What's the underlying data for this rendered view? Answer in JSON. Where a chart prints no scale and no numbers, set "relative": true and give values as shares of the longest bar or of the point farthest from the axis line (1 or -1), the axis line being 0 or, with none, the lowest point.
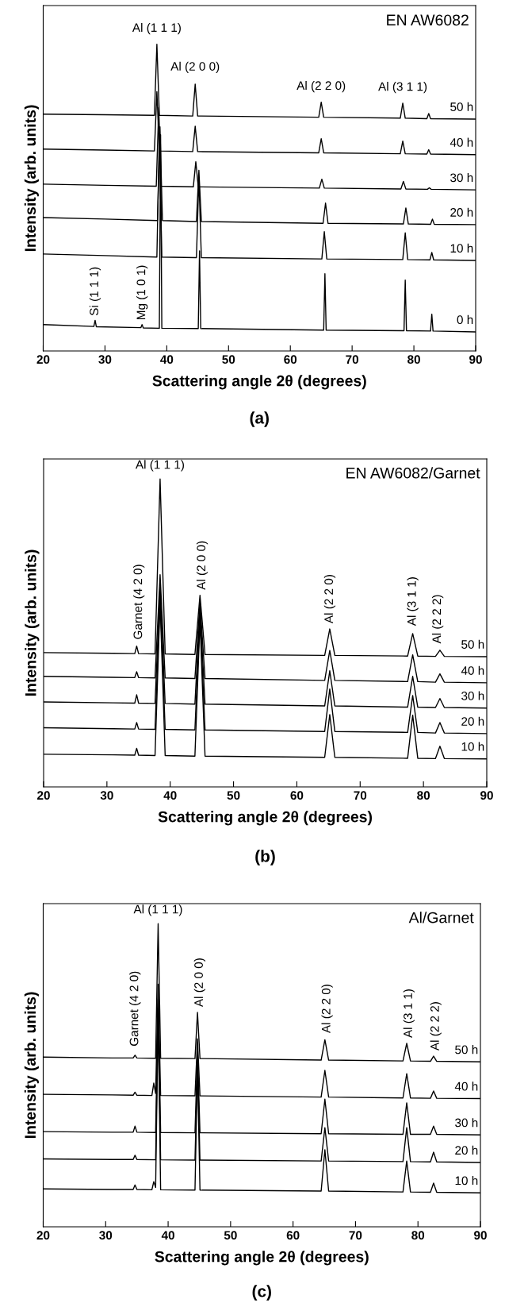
{
  "chart_data": [
    {
      "type": "line",
      "title": "(a)",
      "xlabel": "Scattering angle 2θ (degrees)",
      "ylabel": "Intensity (arb. units)",
      "relative": true,
      "xlim": [
        20,
        90
      ],
      "xticks": [
        20,
        30,
        40,
        50,
        60,
        70,
        80,
        90
      ],
      "tick_labels": "x",
      "legend": false,
      "grid": false,
      "annotations": [
        "EN AW6082",
        {
          "text": "Al (1 1 1)",
          "x": 38.4,
          "y": 1.0
        },
        {
          "text": "Al (2 0 0)",
          "x": 44.6,
          "y": 0.87
        },
        {
          "text": "Al (2 2 0)",
          "x": 65.0,
          "y": 0.811
        },
        {
          "text": "Al (3 1 1)",
          "x": 78.2,
          "y": 0.808
        },
        {
          "text": "Si (1 1 1)",
          "x": 28.4,
          "y": 0.1
        },
        {
          "text": "Mg (1 0 1)",
          "x": 36.0,
          "y": 0.086
        }
      ],
      "series": [
        {
          "name": "50 h",
          "color": "#000000",
          "x": [
            20,
            30,
            38.0,
            38.4,
            38.8,
            44.2,
            44.6,
            45.0,
            64.6,
            65.0,
            65.4,
            77.8,
            78.2,
            78.6,
            82.1,
            82.4,
            82.7,
            90
          ],
          "values": [
            0.772,
            0.77,
            0.768,
            1.0,
            0.768,
            0.766,
            0.87,
            0.766,
            0.762,
            0.811,
            0.762,
            0.759,
            0.808,
            0.759,
            0.757,
            0.774,
            0.757,
            0.756
          ]
        },
        {
          "name": "40 h",
          "color": "#000000",
          "x": [
            20,
            30,
            38.0,
            38.4,
            38.8,
            44.2,
            44.6,
            45.0,
            64.6,
            65.0,
            65.4,
            77.8,
            78.2,
            78.6,
            82.1,
            82.4,
            82.7,
            90
          ],
          "values": [
            0.658,
            0.655,
            0.652,
            0.845,
            0.652,
            0.65,
            0.733,
            0.65,
            0.646,
            0.692,
            0.646,
            0.643,
            0.684,
            0.643,
            0.642,
            0.656,
            0.642,
            0.64
          ]
        },
        {
          "name": "30 h",
          "color": "#000000",
          "x": [
            20,
            30,
            38.3,
            38.7,
            39.1,
            44.3,
            44.7,
            45.1,
            64.7,
            65.1,
            65.5,
            77.9,
            78.3,
            78.7,
            82.2,
            82.5,
            82.8,
            90
          ],
          "values": [
            0.544,
            0.54,
            0.537,
            0.793,
            0.537,
            0.535,
            0.617,
            0.535,
            0.531,
            0.56,
            0.531,
            0.528,
            0.553,
            0.528,
            0.527,
            0.532,
            0.527,
            0.525
          ]
        },
        {
          "name": "20 h",
          "color": "#000000",
          "x": [
            20,
            30,
            38.5,
            38.9,
            39.3,
            44.8,
            45.2,
            45.6,
            65.3,
            65.7,
            66.1,
            78.3,
            78.7,
            79.1,
            82.7,
            83.0,
            83.3,
            90
          ],
          "values": [
            0.435,
            0.43,
            0.425,
            0.731,
            0.425,
            0.422,
            0.589,
            0.422,
            0.416,
            0.482,
            0.416,
            0.414,
            0.466,
            0.414,
            0.413,
            0.43,
            0.413,
            0.412
          ]
        },
        {
          "name": "10 h",
          "color": "#000000",
          "x": [
            20,
            30,
            38.4,
            38.8,
            39.2,
            44.8,
            45.2,
            45.6,
            65.1,
            65.5,
            65.9,
            78.2,
            78.6,
            79.0,
            82.6,
            82.9,
            83.2,
            90
          ],
          "values": [
            0.316,
            0.311,
            0.306,
            0.71,
            0.306,
            0.304,
            0.565,
            0.304,
            0.3,
            0.389,
            0.3,
            0.298,
            0.385,
            0.298,
            0.297,
            0.321,
            0.297,
            0.295
          ]
        },
        {
          "name": "0 h",
          "color": "#000000",
          "x": [
            20,
            28.2,
            28.4,
            28.6,
            35.8,
            36.0,
            36.2,
            38.8,
            39.0,
            39.2,
            45.1,
            45.3,
            45.5,
            65.4,
            65.6,
            65.8,
            78.4,
            78.6,
            78.8,
            82.7,
            82.9,
            83.1,
            90
          ],
          "values": [
            0.086,
            0.08,
            0.1,
            0.079,
            0.076,
            0.086,
            0.075,
            0.074,
            0.705,
            0.074,
            0.073,
            0.326,
            0.073,
            0.068,
            0.252,
            0.068,
            0.066,
            0.231,
            0.066,
            0.065,
            0.12,
            0.065,
            0.062
          ]
        }
      ]
    },
    {
      "type": "line",
      "title": "(b)",
      "xlabel": "Scattering angle 2θ (degrees)",
      "ylabel": "Intensity (arb. units)",
      "relative": true,
      "xlim": [
        20,
        90
      ],
      "xticks": [
        20,
        30,
        40,
        50,
        60,
        70,
        80,
        90
      ],
      "tick_labels": "x",
      "legend": false,
      "grid": false,
      "annotations": [
        "EN AW6082/Garnet",
        {
          "text": "Al (1 1 1)",
          "x": 38.4,
          "y": 1.0
        },
        {
          "text": "Garnet (4 2 0)",
          "x": 34.7,
          "y": 0.457
        },
        {
          "text": "Al (2 0 0)",
          "x": 44.7,
          "y": 0.622
        },
        {
          "text": "Al (2 2 0)",
          "x": 65.2,
          "y": 0.513
        },
        {
          "text": "Al (3 1 1)",
          "x": 78.3,
          "y": 0.498
        },
        {
          "text": "Al (2 2 2)",
          "x": 82.6,
          "y": 0.444
        }
      ],
      "series": [
        {
          "name": "50 h",
          "color": "#000000",
          "x": [
            20,
            31,
            34.4,
            34.7,
            35.0,
            37.6,
            38.4,
            39.2,
            43.9,
            44.7,
            45.5,
            64.4,
            65.2,
            66.0,
            77.5,
            78.3,
            79.1,
            81.9,
            82.6,
            83.3,
            90
          ],
          "values": [
            0.436,
            0.434,
            0.433,
            0.457,
            0.433,
            0.432,
            1.0,
            0.432,
            0.43,
            0.622,
            0.43,
            0.427,
            0.513,
            0.427,
            0.425,
            0.498,
            0.425,
            0.424,
            0.444,
            0.424,
            0.423
          ]
        },
        {
          "name": "40 h",
          "color": "#000000",
          "x": [
            20,
            31,
            34.4,
            34.7,
            35.0,
            37.6,
            38.4,
            39.2,
            43.9,
            44.7,
            45.5,
            64.4,
            65.2,
            66.0,
            77.5,
            78.3,
            79.1,
            81.9,
            82.6,
            83.3,
            90
          ],
          "values": [
            0.359,
            0.356,
            0.355,
            0.374,
            0.355,
            0.354,
            0.689,
            0.354,
            0.352,
            0.6,
            0.352,
            0.346,
            0.443,
            0.346,
            0.342,
            0.429,
            0.342,
            0.34,
            0.367,
            0.34,
            0.338
          ]
        },
        {
          "name": "30 h",
          "color": "#000000",
          "x": [
            20,
            31,
            34.4,
            34.7,
            35.0,
            37.6,
            38.4,
            39.2,
            43.9,
            44.7,
            45.5,
            64.4,
            65.2,
            66.0,
            77.5,
            78.3,
            79.1,
            81.9,
            82.6,
            83.3,
            90
          ],
          "values": [
            0.276,
            0.273,
            0.272,
            0.299,
            0.272,
            0.271,
            0.65,
            0.271,
            0.269,
            0.58,
            0.269,
            0.263,
            0.377,
            0.263,
            0.259,
            0.359,
            0.259,
            0.258,
            0.287,
            0.258,
            0.256
          ]
        },
        {
          "name": "20 h",
          "color": "#000000",
          "x": [
            20,
            31,
            34.4,
            34.7,
            35.0,
            37.6,
            38.4,
            39.2,
            43.9,
            44.7,
            45.5,
            64.4,
            65.2,
            66.0,
            77.5,
            78.3,
            79.1,
            81.9,
            82.6,
            83.3,
            90
          ],
          "values": [
            0.192,
            0.189,
            0.188,
            0.209,
            0.188,
            0.187,
            0.62,
            0.187,
            0.185,
            0.56,
            0.185,
            0.18,
            0.318,
            0.18,
            0.177,
            0.297,
            0.177,
            0.175,
            0.209,
            0.175,
            0.173
          ]
        },
        {
          "name": "10 h",
          "color": "#000000",
          "x": [
            20,
            31,
            34.4,
            34.7,
            35.0,
            37.6,
            38.4,
            39.2,
            43.9,
            44.7,
            45.5,
            64.4,
            65.2,
            66.0,
            77.5,
            78.3,
            79.1,
            81.9,
            82.6,
            83.3,
            90
          ],
          "values": [
            0.106,
            0.104,
            0.103,
            0.125,
            0.103,
            0.102,
            0.6,
            0.102,
            0.1,
            0.54,
            0.1,
            0.096,
            0.235,
            0.096,
            0.093,
            0.233,
            0.093,
            0.092,
            0.132,
            0.092,
            0.091
          ]
        }
      ]
    },
    {
      "type": "line",
      "title": "(c)",
      "xlabel": "Scattering angle 2θ (degrees)",
      "ylabel": "Intensity (arb. units)",
      "relative": true,
      "xlim": [
        20,
        90
      ],
      "xticks": [
        20,
        30,
        40,
        50,
        60,
        70,
        80,
        90
      ],
      "tick_labels": "x",
      "legend": false,
      "grid": false,
      "annotations": [
        "Al/Garnet",
        {
          "text": "Al (1 1 1)",
          "x": 38.4,
          "y": 1.0
        },
        {
          "text": "Garnet (4 2 0)",
          "x": 34.7,
          "y": 0.566
        },
        {
          "text": "Al (2 0 0)",
          "x": 44.7,
          "y": 0.707
        },
        {
          "text": "Al (2 2 0)",
          "x": 65.1,
          "y": 0.617
        },
        {
          "text": "Al (3 1 1)",
          "x": 78.2,
          "y": 0.605
        },
        {
          "text": "Al (2 2 2)",
          "x": 82.5,
          "y": 0.563
        }
      ],
      "series": [
        {
          "name": "50 h",
          "color": "#000000",
          "x": [
            20,
            31,
            34.4,
            34.7,
            35.0,
            38.0,
            38.4,
            38.8,
            44.3,
            44.7,
            45.1,
            64.5,
            65.1,
            65.7,
            77.6,
            78.2,
            78.8,
            82.0,
            82.5,
            83.0,
            90
          ],
          "values": [
            0.56,
            0.557,
            0.557,
            0.566,
            0.557,
            0.556,
            1.0,
            0.556,
            0.555,
            0.707,
            0.555,
            0.55,
            0.617,
            0.55,
            0.547,
            0.605,
            0.547,
            0.546,
            0.563,
            0.546,
            0.544
          ]
        },
        {
          "name": "40 h",
          "color": "#000000",
          "x": [
            20,
            31,
            34.4,
            34.7,
            35.0,
            37.4,
            37.7,
            38.0,
            38.4,
            38.8,
            44.3,
            44.7,
            45.1,
            64.5,
            65.1,
            65.7,
            77.6,
            78.2,
            78.8,
            82.0,
            82.5,
            83.0,
            90
          ],
          "values": [
            0.437,
            0.435,
            0.434,
            0.444,
            0.434,
            0.433,
            0.474,
            0.44,
            0.8,
            0.433,
            0.432,
            0.62,
            0.432,
            0.428,
            0.516,
            0.428,
            0.425,
            0.505,
            0.425,
            0.424,
            0.448,
            0.424,
            0.423
          ]
        },
        {
          "name": "30 h",
          "color": "#000000",
          "x": [
            20,
            31,
            34.4,
            34.7,
            35.0,
            38.0,
            38.4,
            38.8,
            44.3,
            44.7,
            45.1,
            64.5,
            65.1,
            65.7,
            77.6,
            78.2,
            78.8,
            82.0,
            82.5,
            83.0,
            90
          ],
          "values": [
            0.314,
            0.312,
            0.312,
            0.332,
            0.312,
            0.311,
            0.75,
            0.311,
            0.31,
            0.58,
            0.31,
            0.307,
            0.421,
            0.307,
            0.305,
            0.409,
            0.305,
            0.305,
            0.332,
            0.305,
            0.303
          ]
        },
        {
          "name": "20 h",
          "color": "#000000",
          "x": [
            20,
            31,
            34.4,
            34.7,
            35.0,
            38.0,
            38.4,
            38.8,
            44.3,
            44.7,
            45.1,
            64.5,
            65.1,
            65.7,
            77.6,
            78.2,
            78.8,
            82.0,
            82.5,
            83.0,
            90
          ],
          "values": [
            0.224,
            0.222,
            0.222,
            0.236,
            0.222,
            0.221,
            0.72,
            0.221,
            0.22,
            0.55,
            0.22,
            0.217,
            0.327,
            0.217,
            0.215,
            0.327,
            0.215,
            0.214,
            0.246,
            0.214,
            0.212
          ]
        },
        {
          "name": "10 h",
          "color": "#000000",
          "x": [
            20,
            31,
            34.4,
            34.7,
            35.0,
            37.4,
            37.7,
            38.0,
            38.4,
            38.8,
            44.3,
            44.7,
            45.1,
            64.5,
            65.1,
            65.7,
            77.6,
            78.2,
            78.8,
            82.0,
            82.5,
            83.0,
            90
          ],
          "values": [
            0.125,
            0.123,
            0.123,
            0.138,
            0.123,
            0.122,
            0.149,
            0.13,
            0.7,
            0.122,
            0.121,
            0.53,
            0.121,
            0.118,
            0.254,
            0.118,
            0.115,
            0.217,
            0.115,
            0.114,
            0.144,
            0.114,
            0.112
          ]
        }
      ]
    }
  ]
}
